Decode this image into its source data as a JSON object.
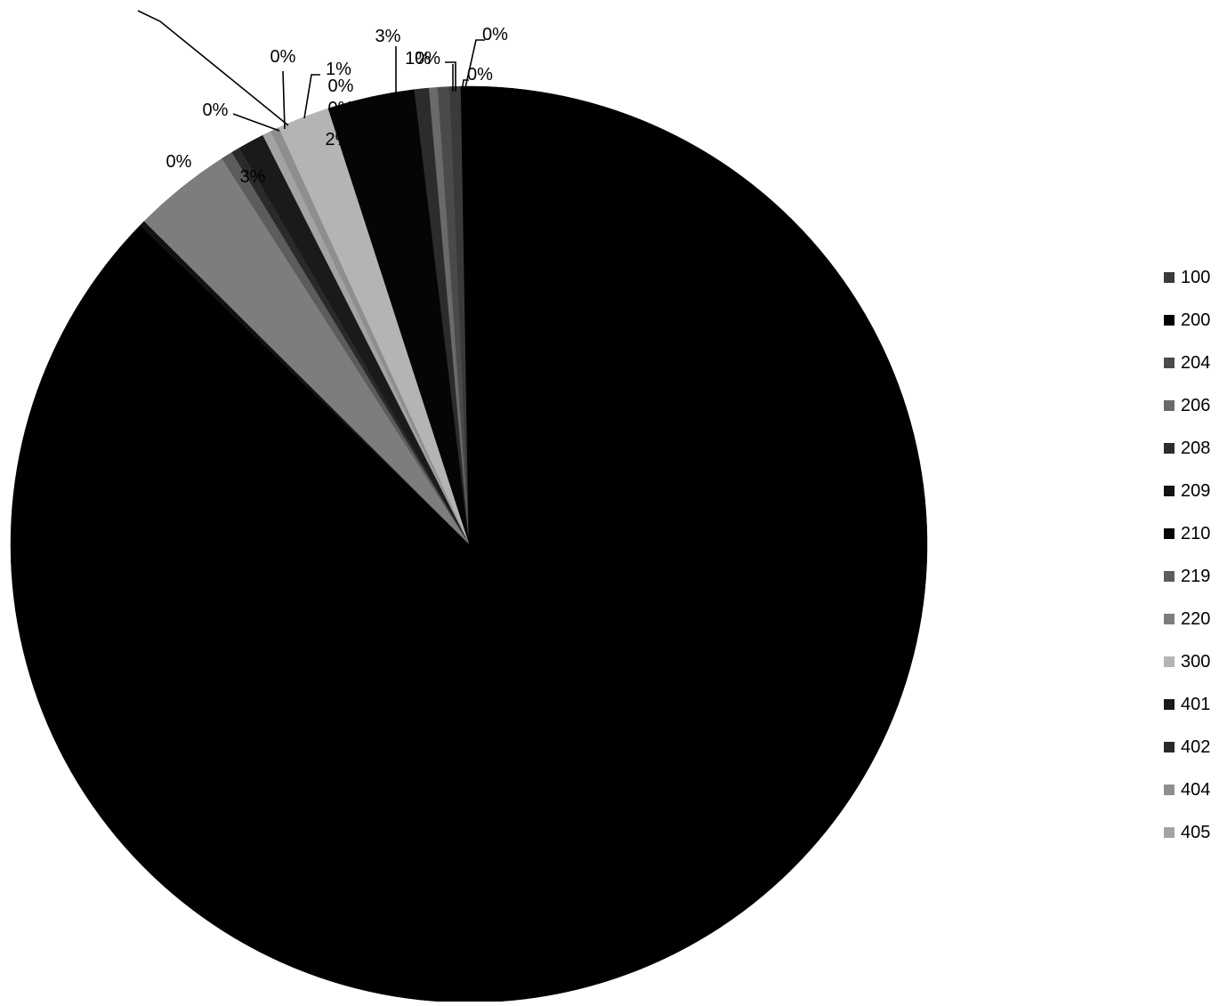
{
  "chart_data": {
    "type": "pie",
    "title": "",
    "categories": [
      "100",
      "200",
      "204",
      "206",
      "208",
      "209",
      "210",
      "219",
      "220",
      "300",
      "401",
      "402",
      "404",
      "405"
    ],
    "values": [
      0.4,
      85.6,
      0.4,
      0.3,
      0.5,
      0.2,
      3.0,
      0.4,
      3.4,
      1.8,
      0.9,
      0.3,
      0.3,
      0.3
    ],
    "data_labels": [
      "0%",
      "",
      "0%",
      "0%",
      "1%",
      "0%",
      "3%",
      "0%",
      "3%",
      "2%",
      "1%",
      "0%",
      "0%",
      "0%"
    ],
    "colors": [
      "#3a3a3a",
      "#000000",
      "#4a4a4a",
      "#6a6a6a",
      "#2c2c2c",
      "#121212",
      "#050505",
      "#5c5c5c",
      "#7d7d7d",
      "#b4b4b4",
      "#1a1a1a",
      "#2a2a2a",
      "#8e8e8e",
      "#a3a3a3"
    ],
    "legend_position": "right"
  }
}
